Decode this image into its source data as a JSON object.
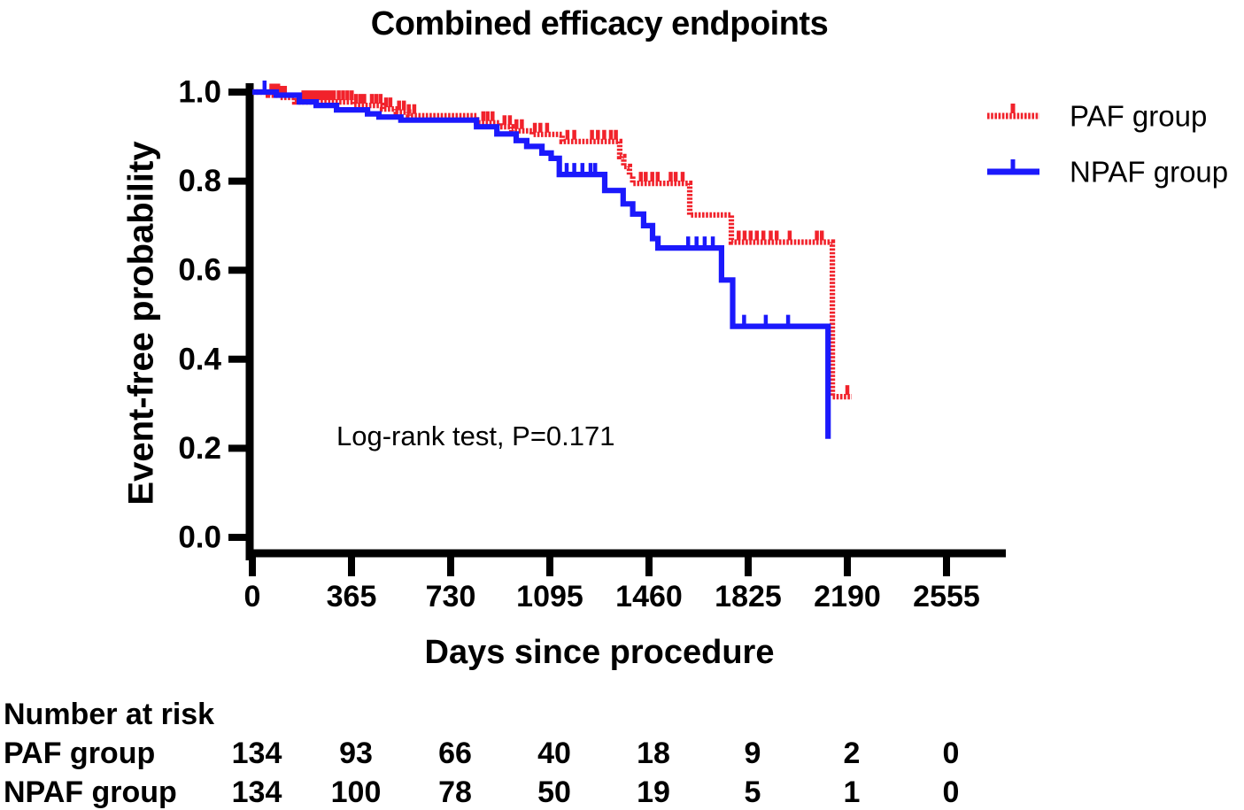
{
  "chart_data": {
    "type": "line",
    "subtype": "kaplan-meier-step",
    "title": "Combined efficacy endpoints",
    "xlabel": "Days since procedure",
    "ylabel": "Event-free probability",
    "annotation": "Log-rank test, P=0.171",
    "grid": false,
    "legend_position": "right",
    "xlim": [
      0,
      2555
    ],
    "ylim": [
      0.0,
      1.0
    ],
    "x_ticks": [
      0,
      365,
      730,
      1095,
      1460,
      1825,
      2190,
      2555
    ],
    "y_ticks": [
      "1.0",
      "0.8",
      "0.6",
      "0.4",
      "0.2",
      "0.0"
    ],
    "series": [
      {
        "name": "PAF group",
        "color": "#f1222b",
        "line_style": "dotted-thick",
        "steps": [
          [
            0,
            1.0
          ],
          [
            59,
            0.993
          ],
          [
            100,
            0.988
          ],
          [
            156,
            0.978
          ],
          [
            375,
            0.97
          ],
          [
            479,
            0.962
          ],
          [
            530,
            0.955
          ],
          [
            575,
            0.947
          ],
          [
            825,
            0.931
          ],
          [
            912,
            0.922
          ],
          [
            955,
            0.913
          ],
          [
            1030,
            0.905
          ],
          [
            1140,
            0.889
          ],
          [
            1352,
            0.855
          ],
          [
            1367,
            0.833
          ],
          [
            1388,
            0.813
          ],
          [
            1400,
            0.795
          ],
          [
            1610,
            0.724
          ],
          [
            1763,
            0.663
          ],
          [
            2135,
            0.316
          ]
        ],
        "end_day": 2206,
        "censor_days": [
          70,
          82,
          95,
          108,
          120,
          188,
          202,
          216,
          230,
          244,
          258,
          272,
          286,
          300,
          318,
          334,
          350,
          366,
          382,
          398,
          412,
          440,
          456,
          472,
          492,
          508,
          540,
          558,
          576,
          596,
          850,
          866,
          884,
          928,
          948,
          972,
          992,
          1040,
          1060,
          1085,
          1160,
          1185,
          1250,
          1272,
          1295,
          1320,
          1338,
          1430,
          1448,
          1472,
          1492,
          1540,
          1558,
          1584,
          1790,
          1812,
          1834,
          1857,
          1881,
          1908,
          1930,
          1978,
          2078,
          2096,
          2190
        ]
      },
      {
        "name": "NPAF group",
        "color": "#1b19fc",
        "line_style": "solid-thick",
        "steps": [
          [
            0,
            1.0
          ],
          [
            88,
            0.993
          ],
          [
            173,
            0.978
          ],
          [
            235,
            0.97
          ],
          [
            310,
            0.96
          ],
          [
            424,
            0.951
          ],
          [
            466,
            0.944
          ],
          [
            547,
            0.937
          ],
          [
            825,
            0.922
          ],
          [
            900,
            0.906
          ],
          [
            971,
            0.891
          ],
          [
            1010,
            0.878
          ],
          [
            1066,
            0.863
          ],
          [
            1100,
            0.851
          ],
          [
            1130,
            0.815
          ],
          [
            1297,
            0.779
          ],
          [
            1365,
            0.749
          ],
          [
            1400,
            0.726
          ],
          [
            1440,
            0.7
          ],
          [
            1473,
            0.671
          ],
          [
            1493,
            0.65
          ],
          [
            1727,
            0.578
          ],
          [
            1768,
            0.474
          ],
          [
            2119,
            0.221
          ]
        ],
        "end_day": 2119,
        "censor_days": [
          45,
          1157,
          1185,
          1215,
          1245,
          1262,
          1604,
          1635,
          1665,
          1695,
          1810,
          1890,
          1972
        ]
      }
    ],
    "at_risk": {
      "header": "Number at risk",
      "time_points": [
        0,
        365,
        730,
        1095,
        1460,
        1825,
        2190,
        2555
      ],
      "rows": [
        {
          "label": "PAF group",
          "values": [
            134,
            93,
            66,
            40,
            18,
            9,
            2,
            0
          ]
        },
        {
          "label": "NPAF group",
          "values": [
            134,
            100,
            78,
            50,
            19,
            5,
            1,
            0
          ]
        }
      ]
    }
  },
  "colors": {
    "paf": "#f1222b",
    "npaf": "#1b19fc",
    "axis": "#000000",
    "text": "#000000",
    "background": "#ffffff"
  }
}
